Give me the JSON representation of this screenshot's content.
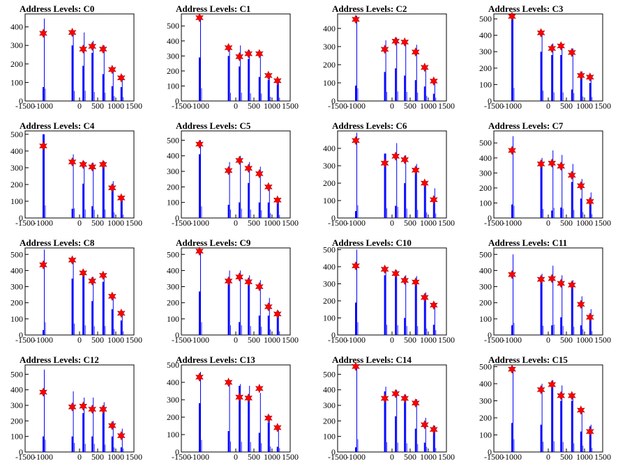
{
  "colors": {
    "bar": "#0000ff",
    "marker": "#ff0000",
    "axis": "#000000",
    "frame": "#000000"
  },
  "chart_data": [
    {
      "type": "bar",
      "title": "Address Levels: C0",
      "xlim": [
        -1500,
        1500
      ],
      "ylim": [
        0,
        470
      ],
      "xticks": [
        -1500,
        -1000,
        0,
        500,
        1000,
        1500
      ],
      "xticklabels": [
        "-1500",
        "-1000",
        "0",
        "500",
        "1000",
        "1500"
      ],
      "yticks": [
        0,
        100,
        200,
        300,
        400
      ],
      "x": [
        -1000,
        -200,
        100,
        350,
        650,
        900,
        1150
      ],
      "values": [
        445,
        365,
        370,
        325,
        300,
        180,
        140
      ],
      "inner": [
        75,
        300,
        190,
        260,
        145,
        80,
        75
      ],
      "markers": [
        365,
        370,
        280,
        295,
        280,
        170,
        125
      ]
    },
    {
      "type": "bar",
      "title": "Address Levels: C1",
      "xlim": [
        -1500,
        1500
      ],
      "ylim": [
        0,
        580
      ],
      "xticks": [
        -1500,
        -1000,
        0,
        500,
        1000,
        1500
      ],
      "xticklabels": [
        "-1500",
        "-1000",
        "0",
        "500",
        "1000",
        "1500"
      ],
      "yticks": [
        0,
        100,
        200,
        300,
        400,
        500
      ],
      "x": [
        -1000,
        -200,
        100,
        350,
        650,
        900,
        1150
      ],
      "values": [
        570,
        360,
        370,
        340,
        330,
        185,
        150
      ],
      "inner": [
        290,
        300,
        230,
        280,
        160,
        140,
        110
      ],
      "markers": [
        555,
        355,
        295,
        315,
        315,
        170,
        135
      ]
    },
    {
      "type": "bar",
      "title": "Address Levels: C2",
      "xlim": [
        -1500,
        1500
      ],
      "ylim": [
        0,
        480
      ],
      "xticks": [
        -1500,
        -1000,
        0,
        500,
        1000,
        1500
      ],
      "xticklabels": [
        "-1500",
        "-1000",
        "0",
        "500",
        "1000",
        "1500"
      ],
      "yticks": [
        0,
        100,
        200,
        300,
        400
      ],
      "x": [
        -1000,
        -200,
        100,
        350,
        650,
        900,
        1150
      ],
      "values": [
        470,
        335,
        350,
        335,
        310,
        190,
        120
      ],
      "inner": [
        85,
        160,
        180,
        140,
        115,
        80,
        40
      ],
      "markers": [
        450,
        285,
        330,
        325,
        270,
        185,
        110
      ]
    },
    {
      "type": "bar",
      "title": "Address Levels: C3",
      "xlim": [
        -1500,
        1500
      ],
      "ylim": [
        0,
        530
      ],
      "xticks": [
        -1500,
        -1000,
        0,
        500,
        1000,
        1500
      ],
      "xticklabels": [
        "-1500",
        "-1000",
        "0",
        "500",
        "1000",
        "1500"
      ],
      "yticks": [
        0,
        100,
        200,
        300,
        400,
        500
      ],
      "x": [
        -1000,
        -200,
        100,
        350,
        650,
        900,
        1150
      ],
      "values": [
        530,
        420,
        350,
        350,
        320,
        180,
        160
      ],
      "inner": [
        500,
        300,
        280,
        280,
        70,
        165,
        110
      ],
      "markers": [
        515,
        415,
        320,
        335,
        295,
        155,
        145
      ]
    },
    {
      "type": "bar",
      "title": "Address Levels: C4",
      "xlim": [
        -1500,
        1500
      ],
      "ylim": [
        0,
        520
      ],
      "xticks": [
        -1500,
        -1000,
        0,
        500,
        1000,
        1500
      ],
      "xticklabels": [
        "-1500",
        "-1000",
        "0",
        "500",
        "1000",
        "1500"
      ],
      "yticks": [
        0,
        100,
        200,
        300,
        400,
        500
      ],
      "x": [
        -1000,
        -200,
        100,
        350,
        650,
        900,
        1150
      ],
      "values": [
        500,
        380,
        340,
        330,
        340,
        220,
        130
      ],
      "inner": [
        500,
        55,
        205,
        70,
        320,
        200,
        115
      ],
      "markers": [
        430,
        335,
        320,
        305,
        320,
        180,
        120
      ]
    },
    {
      "type": "bar",
      "title": "Address Levels: C5",
      "xlim": [
        -1500,
        1500
      ],
      "ylim": [
        0,
        560
      ],
      "xticks": [
        -1500,
        -1000,
        0,
        500,
        1000,
        1500
      ],
      "xticklabels": [
        "-1500",
        "-1000",
        "0",
        "500",
        "1000",
        "1500"
      ],
      "yticks": [
        0,
        100,
        200,
        300,
        400,
        500
      ],
      "x": [
        -1000,
        -200,
        100,
        350,
        650,
        900,
        1150
      ],
      "values": [
        500,
        360,
        400,
        360,
        330,
        210,
        130
      ],
      "inner": [
        410,
        85,
        100,
        225,
        100,
        100,
        105
      ],
      "markers": [
        475,
        305,
        370,
        320,
        285,
        200,
        115
      ]
    },
    {
      "type": "bar",
      "title": "Address Levels: C6",
      "xlim": [
        -1500,
        1500
      ],
      "ylim": [
        0,
        500
      ],
      "xticks": [
        -1500,
        -1000,
        0,
        500,
        1000,
        1500
      ],
      "xticklabels": [
        "-1500",
        "-1000",
        "0",
        "500",
        "1000",
        "1500"
      ],
      "yticks": [
        0,
        100,
        200,
        300,
        400
      ],
      "x": [
        -1000,
        -200,
        100,
        350,
        650,
        900,
        1150
      ],
      "values": [
        490,
        370,
        430,
        360,
        310,
        210,
        170
      ],
      "inner": [
        40,
        370,
        70,
        200,
        260,
        190,
        95
      ],
      "markers": [
        445,
        315,
        355,
        335,
        275,
        200,
        105
      ]
    },
    {
      "type": "bar",
      "title": "Address Levels: C7",
      "xlim": [
        -1500,
        1500
      ],
      "ylim": [
        0,
        580
      ],
      "xticks": [
        -1500,
        -1000,
        0,
        500,
        1000,
        1500
      ],
      "xticklabels": [
        "-1500",
        "-1000",
        "0",
        "500",
        "1000",
        "1500"
      ],
      "yticks": [
        0,
        100,
        200,
        300,
        400,
        500
      ],
      "x": [
        -1000,
        -200,
        100,
        350,
        650,
        900,
        1150
      ],
      "values": [
        545,
        400,
        450,
        420,
        360,
        260,
        170
      ],
      "inner": [
        90,
        370,
        50,
        70,
        240,
        130,
        110
      ],
      "markers": [
        450,
        360,
        365,
        345,
        285,
        215,
        110
      ]
    },
    {
      "type": "bar",
      "title": "Address Levels: C8",
      "xlim": [
        -1500,
        1500
      ],
      "ylim": [
        0,
        540
      ],
      "xticks": [
        -1500,
        -1000,
        0,
        500,
        1000,
        1500
      ],
      "xticklabels": [
        "-1500",
        "-1000",
        "0",
        "500",
        "1000",
        "1500"
      ],
      "yticks": [
        0,
        100,
        200,
        300,
        400,
        500
      ],
      "x": [
        -1000,
        -200,
        100,
        350,
        650,
        900,
        1150
      ],
      "values": [
        530,
        470,
        400,
        360,
        370,
        250,
        150
      ],
      "inner": [
        30,
        350,
        380,
        210,
        330,
        160,
        90
      ],
      "markers": [
        435,
        465,
        385,
        335,
        370,
        240,
        135
      ]
    },
    {
      "type": "bar",
      "title": "Address Levels: C9",
      "xlim": [
        -1500,
        1500
      ],
      "ylim": [
        0,
        540
      ],
      "xticks": [
        -1500,
        -1000,
        0,
        500,
        1000,
        1500
      ],
      "xticklabels": [
        "-1500",
        "-1000",
        "0",
        "500",
        "1000",
        "1500"
      ],
      "yticks": [
        0,
        100,
        200,
        300,
        400,
        500
      ],
      "x": [
        -1000,
        -200,
        100,
        350,
        650,
        900,
        1150
      ],
      "values": [
        530,
        400,
        400,
        370,
        340,
        230,
        150
      ],
      "inner": [
        270,
        320,
        80,
        340,
        120,
        120,
        110
      ],
      "markers": [
        520,
        335,
        360,
        330,
        300,
        175,
        130
      ]
    },
    {
      "type": "bar",
      "title": "Address Levels: C10",
      "xlim": [
        -1500,
        1500
      ],
      "ylim": [
        0,
        510
      ],
      "xticks": [
        -1500,
        -1000,
        0,
        500,
        1000,
        1500
      ],
      "xticklabels": [
        "-1500",
        "-1000",
        "0",
        "500",
        "1000",
        "1500"
      ],
      "yticks": [
        0,
        100,
        200,
        300,
        400,
        500
      ],
      "x": [
        -1000,
        -200,
        100,
        350,
        650,
        900,
        1150
      ],
      "values": [
        500,
        400,
        380,
        350,
        345,
        250,
        190
      ],
      "inner": [
        190,
        350,
        360,
        100,
        325,
        230,
        60
      ],
      "markers": [
        405,
        385,
        360,
        320,
        310,
        220,
        175
      ]
    },
    {
      "type": "bar",
      "title": "Address Levels: C11",
      "xlim": [
        -1500,
        1500
      ],
      "ylim": [
        0,
        540
      ],
      "xticks": [
        -1500,
        -1000,
        0,
        500,
        1000,
        1500
      ],
      "xticklabels": [
        "-1500",
        "-1000",
        "0",
        "500",
        "1000",
        "1500"
      ],
      "yticks": [
        0,
        100,
        200,
        300,
        400,
        500
      ],
      "x": [
        -1000,
        -200,
        100,
        350,
        650,
        900,
        1150
      ],
      "values": [
        500,
        380,
        430,
        370,
        340,
        240,
        160
      ],
      "inner": [
        60,
        360,
        60,
        110,
        300,
        60,
        120
      ],
      "markers": [
        375,
        345,
        350,
        320,
        310,
        190,
        110
      ]
    },
    {
      "type": "bar",
      "title": "Address Levels: C12",
      "xlim": [
        -1500,
        1500
      ],
      "ylim": [
        0,
        560
      ],
      "xticks": [
        -1500,
        -1000,
        0,
        500,
        1000,
        1500
      ],
      "xticklabels": [
        "-1500",
        "-1000",
        "0",
        "500",
        "1000",
        "1500"
      ],
      "yticks": [
        0,
        100,
        200,
        300,
        400,
        500
      ],
      "x": [
        -1000,
        -200,
        100,
        350,
        650,
        900,
        1150
      ],
      "values": [
        530,
        390,
        350,
        350,
        320,
        200,
        150
      ],
      "inner": [
        100,
        100,
        250,
        100,
        250,
        100,
        30
      ],
      "markers": [
        385,
        290,
        295,
        275,
        275,
        170,
        105
      ]
    },
    {
      "type": "bar",
      "title": "Address Levels: C13",
      "xlim": [
        -1500,
        1500
      ],
      "ylim": [
        0,
        500
      ],
      "xticks": [
        -1500,
        -1000,
        0,
        500,
        1000,
        1500
      ],
      "xticklabels": [
        "-1500",
        "-1000",
        "0",
        "500",
        "1000",
        "1500"
      ],
      "yticks": [
        0,
        100,
        200,
        300,
        400,
        500
      ],
      "x": [
        -1000,
        -200,
        100,
        350,
        650,
        900,
        1150
      ],
      "values": [
        460,
        400,
        390,
        380,
        340,
        210,
        150
      ],
      "inner": [
        280,
        120,
        380,
        300,
        110,
        170,
        30
      ],
      "markers": [
        430,
        400,
        315,
        310,
        365,
        195,
        140
      ]
    },
    {
      "type": "bar",
      "title": "Address Levels: C14",
      "xlim": [
        -1500,
        1500
      ],
      "ylim": [
        0,
        560
      ],
      "xticks": [
        -1500,
        -1000,
        0,
        500,
        1000,
        1500
      ],
      "xticklabels": [
        "-1500",
        "-1000",
        "0",
        "500",
        "1000",
        "1500"
      ],
      "yticks": [
        0,
        100,
        200,
        300,
        400,
        500
      ],
      "x": [
        -1000,
        -200,
        100,
        350,
        650,
        900,
        1150
      ],
      "values": [
        550,
        420,
        400,
        370,
        340,
        220,
        170
      ],
      "inner": [
        30,
        390,
        230,
        320,
        150,
        60,
        130
      ],
      "markers": [
        550,
        345,
        375,
        345,
        315,
        175,
        145
      ]
    },
    {
      "type": "bar",
      "title": "Address Levels: C15",
      "xlim": [
        -1500,
        1500
      ],
      "ylim": [
        0,
        510
      ],
      "xticks": [
        -1500,
        -1000,
        0,
        500,
        1000,
        1500
      ],
      "xticklabels": [
        "-1500",
        "-1000",
        "0",
        "500",
        "1000",
        "1500"
      ],
      "yticks": [
        0,
        100,
        200,
        300,
        400,
        500
      ],
      "x": [
        -1000,
        -200,
        100,
        350,
        650,
        900,
        1150
      ],
      "values": [
        500,
        400,
        420,
        390,
        340,
        250,
        160
      ],
      "inner": [
        170,
        160,
        390,
        300,
        300,
        120,
        150
      ],
      "markers": [
        485,
        365,
        395,
        330,
        330,
        245,
        120
      ]
    }
  ]
}
